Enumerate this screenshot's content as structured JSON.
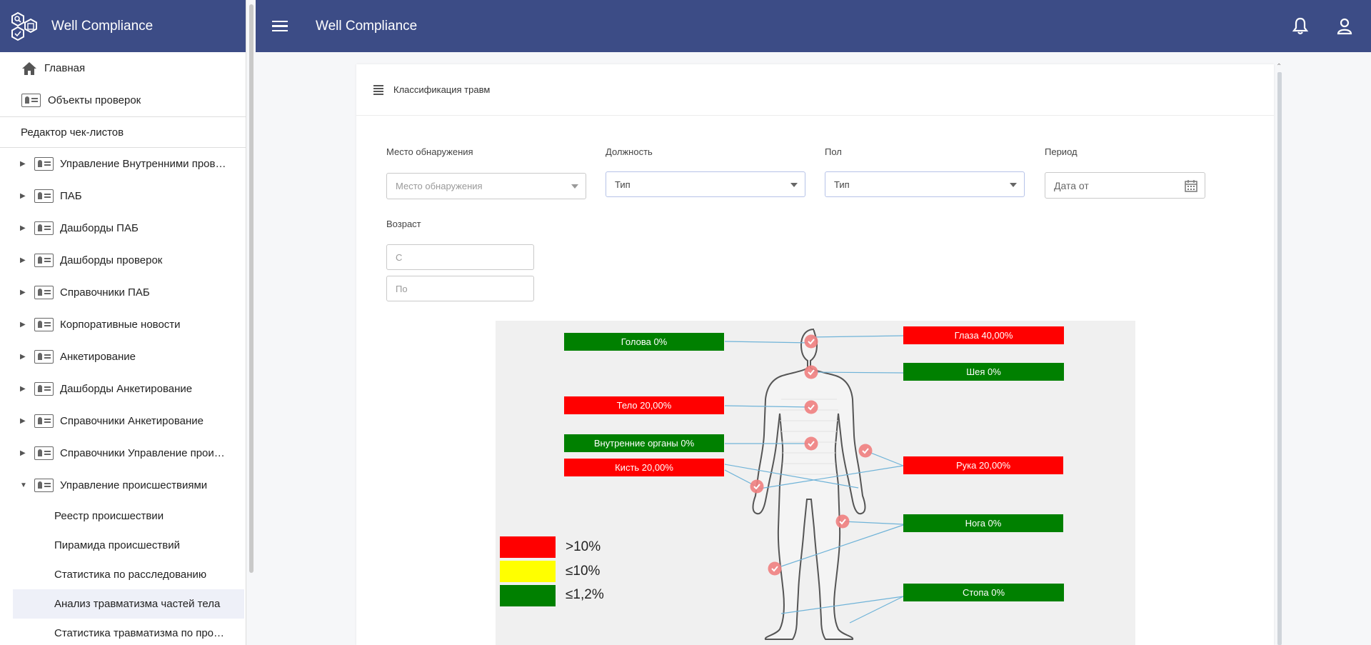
{
  "app": {
    "title": "Well Compliance"
  },
  "sidebar": {
    "top_items": [
      {
        "label": "Главная",
        "icon": "home-icon"
      },
      {
        "label": "Объекты проверок",
        "icon": "id-card-icon"
      }
    ],
    "section_label": "Редактор чек-листов",
    "groups": [
      {
        "label": "Управление Внутренними пров…",
        "expanded": false
      },
      {
        "label": "ПАБ",
        "expanded": false
      },
      {
        "label": "Дашборды ПАБ",
        "expanded": false
      },
      {
        "label": "Дашборды проверок",
        "expanded": false
      },
      {
        "label": "Справочники ПАБ",
        "expanded": false
      },
      {
        "label": "Корпоративные новости",
        "expanded": false
      },
      {
        "label": "Анкетирование",
        "expanded": false
      },
      {
        "label": "Дашборды Анкетирование",
        "expanded": false
      },
      {
        "label": "Справочники Анкетирование",
        "expanded": false
      },
      {
        "label": "Справочники Управление прои…",
        "expanded": false
      },
      {
        "label": "Управление происшествиями",
        "expanded": true
      }
    ],
    "sub_items": [
      {
        "label": "Реестр происшествии",
        "active": false
      },
      {
        "label": "Пирамида происшествий",
        "active": false
      },
      {
        "label": "Статистика по расследованию",
        "active": false
      },
      {
        "label": "Анализ травматизма частей тела",
        "active": true
      },
      {
        "label": "Статистика травматизма по про…",
        "active": false
      }
    ]
  },
  "topbar": {
    "title": "Well Compliance",
    "icons": [
      "menu-icon",
      "bell-icon",
      "user-icon"
    ]
  },
  "card": {
    "title": "Классификация травм"
  },
  "filters": {
    "location": {
      "label": "Место обнаружения",
      "placeholder": "Место обнаружения"
    },
    "position": {
      "label": "Должность",
      "value": "Тип"
    },
    "gender": {
      "label": "Пол",
      "value": "Тип"
    },
    "period": {
      "label": "Период",
      "placeholder": "Дата от"
    },
    "age": {
      "label": "Возраст",
      "from_placeholder": "С",
      "to_placeholder": "По"
    }
  },
  "body_parts": [
    {
      "label": "Голова 0%",
      "level": "low"
    },
    {
      "label": "Глаза 40,00%",
      "level": "high"
    },
    {
      "label": "Шея 0%",
      "level": "low"
    },
    {
      "label": "Тело 20,00%",
      "level": "high"
    },
    {
      "label": "Внутренние органы 0%",
      "level": "low"
    },
    {
      "label": "Рука 20,00%",
      "level": "high"
    },
    {
      "label": "Кисть 20,00%",
      "level": "high"
    },
    {
      "label": "Нога 0%",
      "level": "low"
    },
    {
      "label": "Стопа 0%",
      "level": "low"
    }
  ],
  "legend": [
    {
      "label": ">10%",
      "color": "#ff0000"
    },
    {
      "label": "≤10%",
      "color": "#ffff00"
    },
    {
      "label": "≤1,2%",
      "color": "#008000"
    }
  ],
  "colors": {
    "brand": "#3c4c86",
    "high": "#ff0000",
    "medium": "#ffff00",
    "low": "#008000",
    "marker": "#f08080"
  }
}
